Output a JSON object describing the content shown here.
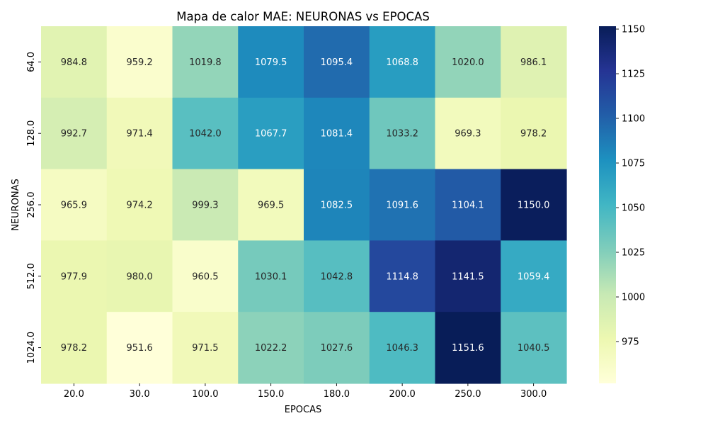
{
  "chart_data": {
    "type": "heatmap",
    "title": "Mapa de calor MAE: NEURONAS vs EPOCAS",
    "xlabel": "EPOCAS",
    "ylabel": "NEURONAS",
    "x_categories": [
      "20.0",
      "30.0",
      "100.0",
      "150.0",
      "180.0",
      "200.0",
      "250.0",
      "300.0"
    ],
    "y_categories": [
      "64.0",
      "128.0",
      "256.0",
      "512.0",
      "1024.0"
    ],
    "values": [
      [
        984.8,
        959.2,
        1019.8,
        1079.5,
        1095.4,
        1068.8,
        1020.0,
        986.1
      ],
      [
        992.7,
        971.4,
        1042.0,
        1067.7,
        1081.4,
        1033.2,
        969.3,
        978.2
      ],
      [
        965.9,
        974.2,
        999.3,
        969.5,
        1082.5,
        1091.6,
        1104.1,
        1150.0
      ],
      [
        977.9,
        980.0,
        960.5,
        1030.1,
        1042.8,
        1114.8,
        1141.5,
        1059.4
      ],
      [
        978.2,
        951.6,
        971.5,
        1022.2,
        1027.6,
        1046.3,
        1151.6,
        1040.5
      ]
    ],
    "colormap": "YlGnBu",
    "color_range": [
      951.6,
      1151.6
    ],
    "colorbar_ticks": [
      "975",
      "1000",
      "1025",
      "1050",
      "1075",
      "1100",
      "1125",
      "1150"
    ],
    "grid": false
  }
}
